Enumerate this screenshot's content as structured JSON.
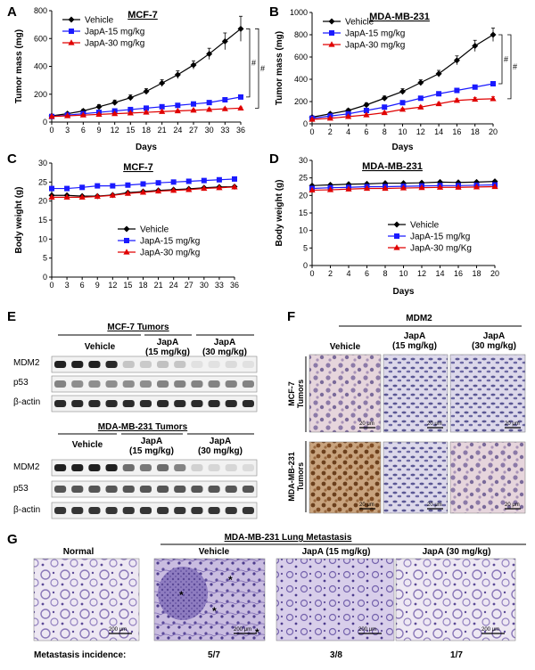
{
  "panel_letters": {
    "A": "A",
    "B": "B",
    "C": "C",
    "D": "D",
    "E": "E",
    "F": "F",
    "G": "G"
  },
  "chart_data": [
    {
      "panel": "A",
      "type": "line",
      "title": "MCF-7",
      "xlabel": "Days",
      "ylabel": "Tumor mass (mg)",
      "xlim": [
        0,
        36
      ],
      "ylim": [
        0,
        800
      ],
      "xticks": [
        0,
        3,
        6,
        9,
        12,
        15,
        18,
        21,
        24,
        27,
        30,
        33,
        36
      ],
      "yticks": [
        0,
        200,
        400,
        600,
        800
      ],
      "significance": [
        "#",
        "#"
      ],
      "legend": "top-left",
      "series": [
        {
          "name": "Vehicle",
          "color": "#000000",
          "marker": "diamond",
          "x": [
            0,
            3,
            6,
            9,
            12,
            15,
            18,
            21,
            24,
            27,
            30,
            33,
            36
          ],
          "y": [
            45,
            60,
            80,
            110,
            140,
            175,
            220,
            280,
            340,
            410,
            490,
            580,
            670
          ],
          "err": [
            10,
            10,
            12,
            15,
            18,
            20,
            20,
            25,
            28,
            30,
            40,
            60,
            90
          ]
        },
        {
          "name": "JapA-15 mg/kg",
          "color": "#1a1aff",
          "marker": "square",
          "x": [
            0,
            3,
            6,
            9,
            12,
            15,
            18,
            21,
            24,
            27,
            30,
            33,
            36
          ],
          "y": [
            40,
            50,
            60,
            70,
            80,
            90,
            100,
            110,
            120,
            130,
            140,
            160,
            180
          ],
          "err": [
            5,
            5,
            6,
            6,
            7,
            7,
            8,
            8,
            9,
            9,
            10,
            10,
            12
          ]
        },
        {
          "name": "JapA-30 mg/kg",
          "color": "#e00000",
          "marker": "triangle",
          "x": [
            0,
            3,
            6,
            9,
            12,
            15,
            18,
            21,
            24,
            27,
            30,
            33,
            36
          ],
          "y": [
            40,
            45,
            50,
            55,
            60,
            65,
            70,
            75,
            80,
            85,
            90,
            95,
            100
          ],
          "err": [
            5,
            5,
            5,
            5,
            6,
            6,
            6,
            7,
            7,
            7,
            8,
            8,
            8
          ]
        }
      ]
    },
    {
      "panel": "B",
      "type": "line",
      "title": "MDA-MB-231",
      "xlabel": "Days",
      "ylabel": "Tumor mass (mg)",
      "xlim": [
        0,
        20
      ],
      "ylim": [
        0,
        1000
      ],
      "xticks": [
        0,
        2,
        4,
        6,
        8,
        10,
        12,
        14,
        16,
        18,
        20
      ],
      "yticks": [
        0,
        200,
        400,
        600,
        800,
        1000
      ],
      "significance": [
        "#",
        "#"
      ],
      "legend": "top-left",
      "series": [
        {
          "name": "Vehicle",
          "color": "#000000",
          "marker": "diamond",
          "x": [
            0,
            2,
            4,
            6,
            8,
            10,
            12,
            14,
            16,
            18,
            20
          ],
          "y": [
            60,
            90,
            120,
            170,
            230,
            290,
            370,
            450,
            570,
            700,
            800
          ],
          "err": [
            10,
            12,
            15,
            18,
            20,
            25,
            25,
            30,
            40,
            50,
            60
          ]
        },
        {
          "name": "JapA-15 mg/kg",
          "color": "#1a1aff",
          "marker": "square",
          "x": [
            0,
            2,
            4,
            6,
            8,
            10,
            12,
            14,
            16,
            18,
            20
          ],
          "y": [
            50,
            70,
            90,
            120,
            150,
            190,
            230,
            270,
            300,
            330,
            360
          ],
          "err": [
            8,
            8,
            10,
            10,
            12,
            12,
            15,
            15,
            18,
            18,
            20
          ]
        },
        {
          "name": "JapA-30 mg/kg",
          "color": "#e00000",
          "marker": "triangle",
          "x": [
            0,
            2,
            4,
            6,
            8,
            10,
            12,
            14,
            16,
            18,
            20
          ],
          "y": [
            40,
            50,
            65,
            80,
            100,
            130,
            150,
            180,
            210,
            220,
            225
          ],
          "err": [
            6,
            6,
            8,
            8,
            10,
            10,
            12,
            12,
            15,
            15,
            18
          ]
        }
      ]
    },
    {
      "panel": "C",
      "type": "line",
      "title": "MCF-7",
      "xlabel": "",
      "ylabel": "Body weight (g)",
      "xlim": [
        0,
        36
      ],
      "ylim": [
        0,
        30
      ],
      "xticks": [
        0,
        3,
        6,
        9,
        12,
        15,
        18,
        21,
        24,
        27,
        30,
        33,
        36
      ],
      "yticks": [
        0,
        5,
        10,
        15,
        20,
        25,
        30
      ],
      "legend": "bottom-center",
      "series": [
        {
          "name": "Vehicle",
          "color": "#000000",
          "marker": "diamond",
          "x": [
            0,
            3,
            6,
            9,
            12,
            15,
            18,
            21,
            24,
            27,
            30,
            33,
            36
          ],
          "y": [
            21.5,
            21.5,
            21.3,
            21.3,
            21.6,
            22.2,
            22.5,
            22.8,
            23.0,
            23.2,
            23.5,
            23.7,
            23.8
          ]
        },
        {
          "name": "JapA-15 mg/kg",
          "color": "#1a1aff",
          "marker": "square",
          "x": [
            0,
            3,
            6,
            9,
            12,
            15,
            18,
            21,
            24,
            27,
            30,
            33,
            36
          ],
          "y": [
            23.3,
            23.3,
            23.6,
            24.0,
            24.0,
            24.2,
            24.5,
            24.8,
            25.0,
            25.2,
            25.4,
            25.6,
            25.8
          ]
        },
        {
          "name": "JapA-30 mg/kg",
          "color": "#e00000",
          "marker": "triangle",
          "x": [
            0,
            3,
            6,
            9,
            12,
            15,
            18,
            21,
            24,
            27,
            30,
            33,
            36
          ],
          "y": [
            21.0,
            21.0,
            21.0,
            21.2,
            21.5,
            22.0,
            22.3,
            22.6,
            22.8,
            23.0,
            23.3,
            23.5,
            23.7
          ]
        }
      ]
    },
    {
      "panel": "D",
      "type": "line",
      "title": "MDA-MB-231",
      "xlabel": "Days",
      "ylabel": "Body weight (g)",
      "xlim": [
        0,
        20
      ],
      "ylim": [
        0,
        30
      ],
      "xticks": [
        0,
        2,
        4,
        6,
        8,
        10,
        12,
        14,
        16,
        18,
        20
      ],
      "yticks": [
        0,
        5,
        10,
        15,
        20,
        25,
        30
      ],
      "legend": "bottom-center",
      "series": [
        {
          "name": "Vehicle",
          "color": "#000000",
          "marker": "diamond",
          "x": [
            0,
            2,
            4,
            6,
            8,
            10,
            12,
            14,
            16,
            18,
            20
          ],
          "y": [
            22.8,
            23.0,
            23.2,
            23.3,
            23.5,
            23.5,
            23.6,
            23.8,
            23.7,
            23.8,
            24.0
          ]
        },
        {
          "name": "JapA-15 mg/kg",
          "color": "#1a1aff",
          "marker": "square",
          "x": [
            0,
            2,
            4,
            6,
            8,
            10,
            12,
            14,
            16,
            18,
            20
          ],
          "y": [
            22.0,
            22.2,
            22.3,
            22.5,
            22.5,
            22.6,
            22.7,
            22.8,
            22.8,
            22.9,
            23.0
          ]
        },
        {
          "name": "JapA-30 mg/Kg",
          "color": "#e00000",
          "marker": "triangle",
          "x": [
            0,
            2,
            4,
            6,
            8,
            10,
            12,
            14,
            16,
            18,
            20
          ],
          "y": [
            21.5,
            21.6,
            21.8,
            22.0,
            22.0,
            22.1,
            22.2,
            22.3,
            22.3,
            22.4,
            22.5
          ]
        }
      ]
    }
  ],
  "panel_e": {
    "blot1_title": "MCF-7 Tumors",
    "blot2_title": "MDA-MB-231  Tumors",
    "vehicle": "Vehicle",
    "japa15": [
      "JapA",
      "(15 mg/kg)"
    ],
    "japa30": [
      "JapA",
      "(30 mg/kg)"
    ],
    "rows": [
      "MDM2",
      "p53",
      "β-actin"
    ]
  },
  "panel_f": {
    "title": "MDM2",
    "cols": [
      [
        "Vehicle"
      ],
      [
        "JapA",
        "(15 mg/kg)"
      ],
      [
        "JapA",
        "(30 mg/kg)"
      ]
    ],
    "row1": [
      "MCF-7",
      "Tumors"
    ],
    "row2": [
      "MDA-MB-231",
      "Tumors"
    ],
    "scale": "20 μm"
  },
  "panel_g": {
    "title": "MDA-MB-231  Lung Metastasis",
    "cols": [
      "Normal",
      "Vehicle",
      "JapA (15 mg/kg)",
      "JapA (30 mg/kg)"
    ],
    "scale": "200 μm",
    "incidence_label": "Metastasis incidence:",
    "incidence": [
      "5/7",
      "3/8",
      "1/7"
    ]
  }
}
